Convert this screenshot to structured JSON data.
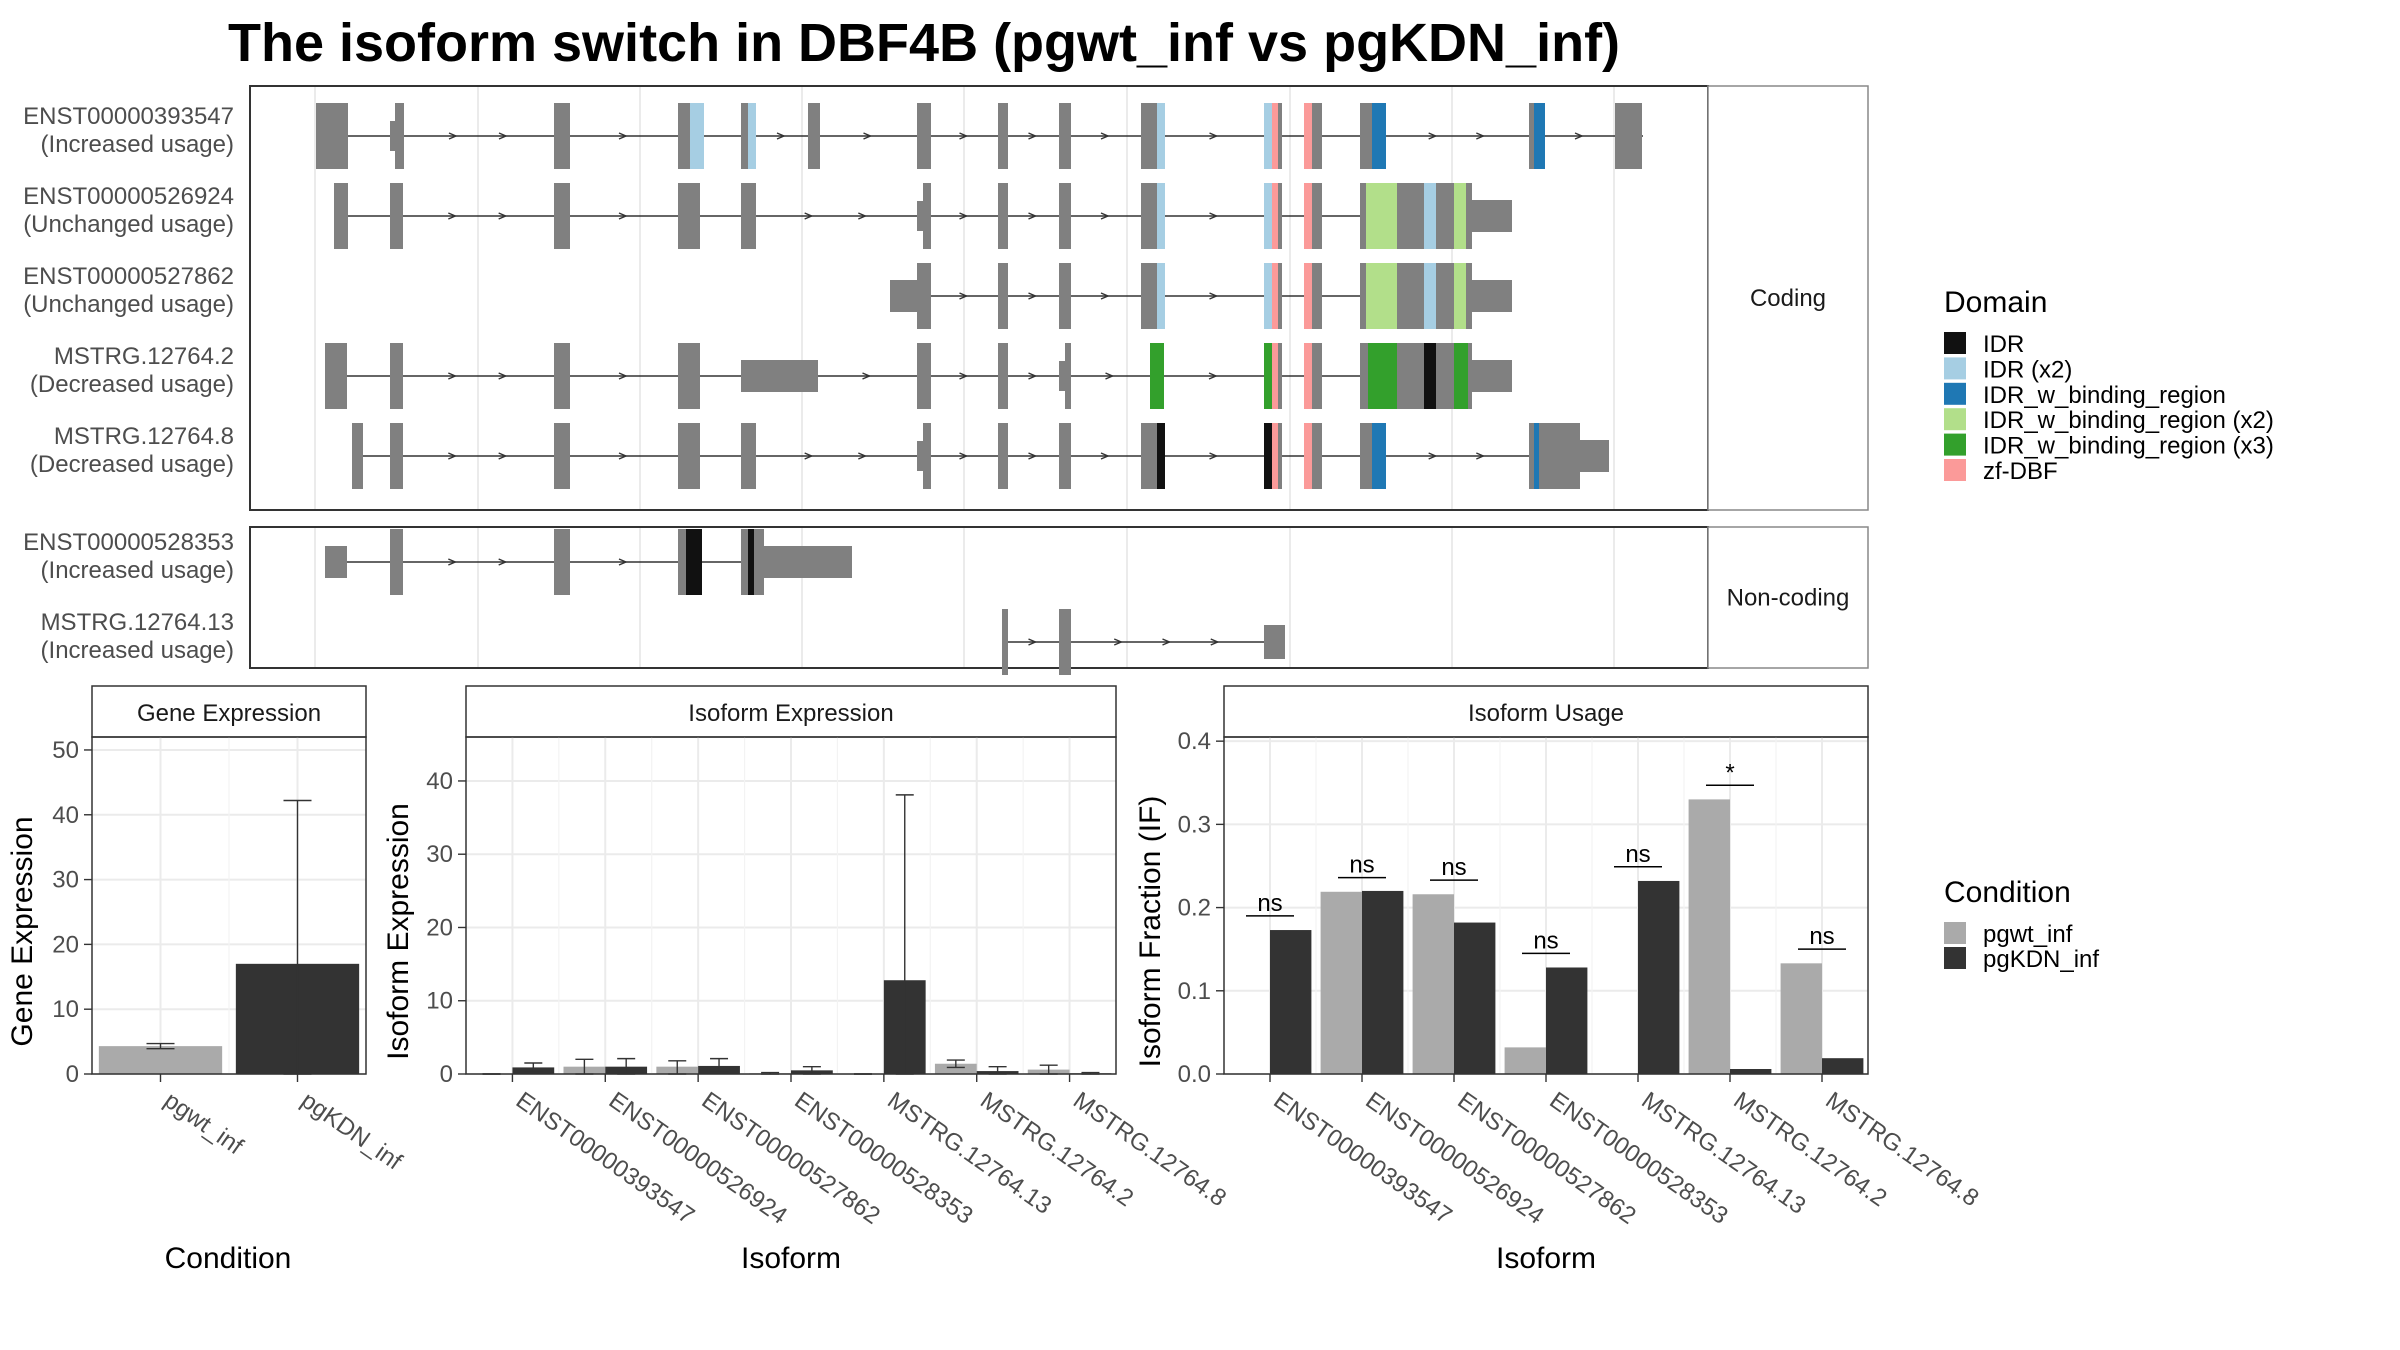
{
  "title": "The isoform switch in DBF4B (pgwt_inf vs pgKDN_inf)",
  "transcript_panel": {
    "facets": [
      {
        "label": "Coding",
        "isoforms": [
          {
            "id": "ENST00000393547",
            "usage": "(Increased usage)"
          },
          {
            "id": "ENST00000526924",
            "usage": "(Unchanged usage)"
          },
          {
            "id": "ENST00000527862",
            "usage": "(Unchanged usage)"
          },
          {
            "id": "MSTRG.12764.2",
            "usage": "(Decreased usage)"
          },
          {
            "id": "MSTRG.12764.8",
            "usage": "(Decreased usage)"
          }
        ]
      },
      {
        "label": "Non-coding",
        "isoforms": [
          {
            "id": "ENST00000528353",
            "usage": "(Increased usage)"
          },
          {
            "id": "MSTRG.12764.13",
            "usage": "(Increased usage)"
          }
        ]
      }
    ],
    "domain_legend": {
      "title": "Domain",
      "items": [
        {
          "label": "IDR",
          "color": "#111111"
        },
        {
          "label": "IDR (x2)",
          "color": "#a6cee3"
        },
        {
          "label": "IDR_w_binding_region",
          "color": "#1f78b4"
        },
        {
          "label": "IDR_w_binding_region (x2)",
          "color": "#b2df8a"
        },
        {
          "label": "IDR_w_binding_region (x3)",
          "color": "#33a02c"
        },
        {
          "label": "zf-DBF",
          "color": "#fb9a99"
        }
      ]
    },
    "exon_color": "#808080"
  },
  "condition_legend": {
    "title": "Condition",
    "items": [
      {
        "label": "pgwt_inf",
        "color": "#aaaaaa"
      },
      {
        "label": "pgKDN_inf",
        "color": "#333333"
      }
    ]
  },
  "chart_data": [
    {
      "type": "bar",
      "title": "Gene Expression",
      "xlabel": "Condition",
      "ylabel": "Gene Expression",
      "ylim": [
        0,
        52
      ],
      "yticks": [
        0,
        10,
        20,
        30,
        40,
        50
      ],
      "categories": [
        "pgwt_inf",
        "pgKDN_inf"
      ],
      "values": [
        4.3,
        17.0
      ],
      "error_low": [
        3.9,
        0.0
      ],
      "error_high": [
        4.7,
        42.2
      ],
      "colors": [
        "#aaaaaa",
        "#333333"
      ]
    },
    {
      "type": "bar",
      "title": "Isoform Expression",
      "xlabel": "Isoform",
      "ylabel": "Isoform Expression",
      "ylim": [
        0,
        46
      ],
      "yticks": [
        0,
        10,
        20,
        30,
        40
      ],
      "categories": [
        "ENST00000393547",
        "ENST00000526924",
        "ENST00000527862",
        "ENST00000528353",
        "MSTRG.12764.13",
        "MSTRG.12764.2",
        "MSTRG.12764.8"
      ],
      "series": [
        {
          "name": "pgwt_inf",
          "values": [
            0.0,
            1.0,
            1.0,
            0.1,
            0.0,
            1.4,
            0.6
          ],
          "error_low": [
            0.0,
            0.0,
            0.0,
            0.0,
            0.0,
            0.9,
            0.0
          ],
          "error_high": [
            0.0,
            2.0,
            1.8,
            0.2,
            0.0,
            1.9,
            1.2
          ]
        },
        {
          "name": "pgKDN_inf",
          "values": [
            0.9,
            1.0,
            1.1,
            0.5,
            12.8,
            0.4,
            0.1
          ],
          "error_low": [
            0.3,
            0.0,
            0.3,
            0.0,
            0.0,
            0.0,
            0.0
          ],
          "error_high": [
            1.5,
            2.1,
            2.1,
            1.0,
            38.1,
            1.0,
            0.2
          ]
        }
      ]
    },
    {
      "type": "bar",
      "title": "Isoform Usage",
      "xlabel": "Isoform",
      "ylabel": "Isoform Fraction (IF)",
      "ylim": [
        0,
        0.405
      ],
      "yticks": [
        0.0,
        0.1,
        0.2,
        0.3,
        0.4
      ],
      "categories": [
        "ENST00000393547",
        "ENST00000526924",
        "ENST00000527862",
        "ENST00000528353",
        "MSTRG.12764.13",
        "MSTRG.12764.2",
        "MSTRG.12764.8"
      ],
      "series": [
        {
          "name": "pgwt_inf",
          "values": [
            0.0,
            0.219,
            0.216,
            0.032,
            0.0,
            0.33,
            0.133
          ]
        },
        {
          "name": "pgKDN_inf",
          "values": [
            0.173,
            0.22,
            0.182,
            0.128,
            0.232,
            0.006,
            0.019
          ]
        }
      ],
      "significance": [
        {
          "label": "ns",
          "y": 0.19
        },
        {
          "label": "ns",
          "y": 0.236
        },
        {
          "label": "ns",
          "y": 0.233
        },
        {
          "label": "ns",
          "y": 0.145
        },
        {
          "label": "ns",
          "y": 0.249
        },
        {
          "label": "*",
          "y": 0.347
        },
        {
          "label": "ns",
          "y": 0.15
        }
      ]
    }
  ]
}
